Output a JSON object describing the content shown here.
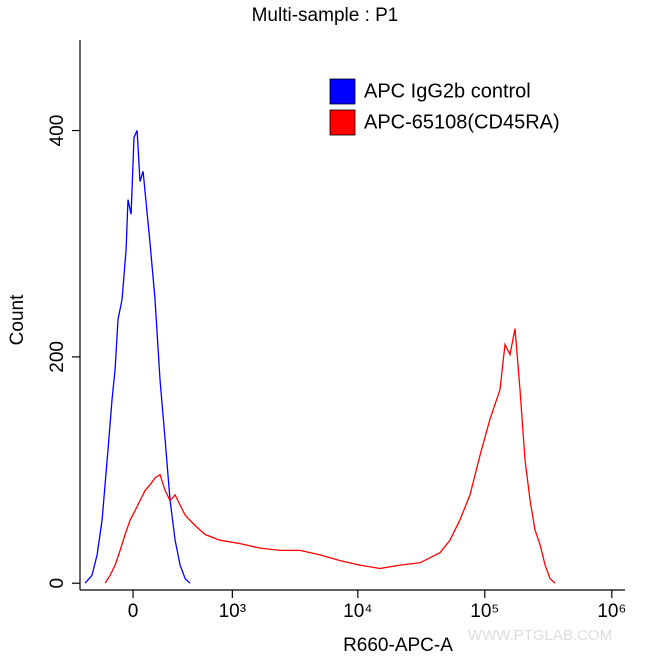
{
  "chart_data": {
    "type": "line",
    "title": "Multi-sample : P1",
    "x_label": "R660-APC-A",
    "y_label": "Count",
    "watermark": "WWW.PTGLAB.COM",
    "xscale": "biexponential",
    "legend": "upper right",
    "xlim": [
      -380,
      1270000
    ],
    "ylim": [
      -6,
      480
    ],
    "xticks": [
      0,
      {
        "value": 1000,
        "label": "10³"
      },
      {
        "value": 10000,
        "label": "10⁴"
      },
      {
        "value": 100000,
        "label": "10⁵"
      },
      {
        "value": 1000000,
        "label": "10⁶"
      }
    ],
    "yticks": [
      0,
      200,
      400
    ],
    "series": [
      {
        "name": "APC IgG2b control",
        "color": "#0000ff",
        "x": [
          -334,
          -277,
          -238,
          -201,
          -160,
          -133,
          -113,
          -94,
          -68,
          -43,
          -31,
          -12,
          6,
          25,
          43,
          62,
          87,
          106,
          139,
          173,
          209,
          245,
          285,
          326,
          371,
          418
        ],
        "values": [
          0,
          7,
          25,
          56,
          118,
          162,
          189,
          233,
          251,
          295,
          339,
          326,
          394,
          400,
          355,
          364,
          328,
          301,
          251,
          180,
          127,
          74,
          38,
          16,
          4,
          0
        ]
      },
      {
        "name": "APC-65108(CD45RA)",
        "color": "#ff0000",
        "x": [
          -180,
          -146,
          -113,
          -81,
          -49,
          -18,
          12,
          43,
          75,
          106,
          139,
          173,
          209,
          245,
          285,
          326,
          371,
          468,
          582,
          786,
          1159,
          1683,
          2431,
          3504,
          5034,
          7232,
          10400,
          14960,
          21500,
          30900,
          44400,
          53200,
          63800,
          76500,
          91700,
          109900,
          131800,
          144300,
          158000,
          173000,
          189400,
          207400,
          227100,
          248600,
          272300,
          298200,
          326400,
          357300
        ],
        "values": [
          0,
          7,
          16,
          29,
          43,
          56,
          64,
          73,
          82,
          87,
          93,
          96,
          82,
          73,
          78,
          69,
          60,
          51,
          43,
          38,
          35,
          31,
          29,
          29,
          25,
          20,
          16,
          13,
          16,
          18,
          27,
          38,
          56,
          78,
          113,
          145,
          171,
          211,
          202,
          225,
          171,
          109,
          73,
          47,
          34,
          16,
          4,
          0
        ]
      }
    ]
  }
}
